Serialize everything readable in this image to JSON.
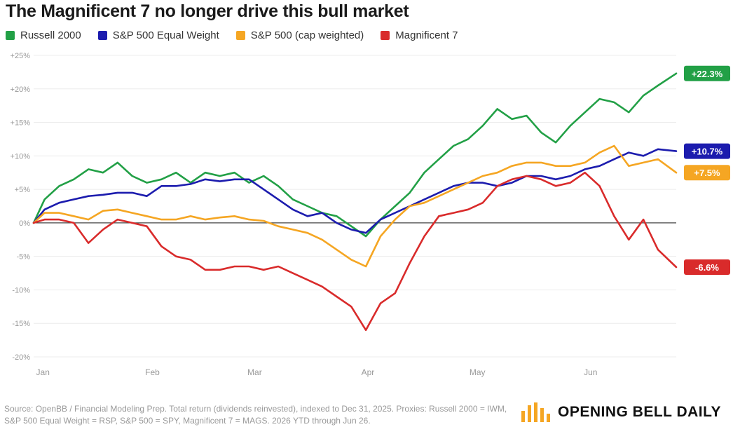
{
  "title": "The Magnificent 7 no longer drive this bull market",
  "legend": [
    {
      "label": "Russell 2000",
      "color": "#22a046"
    },
    {
      "label": "S&P 500 Equal Weight",
      "color": "#1c1cae"
    },
    {
      "label": "S&P 500 (cap weighted)",
      "color": "#f5a623"
    },
    {
      "label": "Magnificent 7",
      "color": "#d92b2b"
    }
  ],
  "source": "Source: OpenBB / Financial Modeling Prep. Total return (dividends reinvested), indexed to Dec 31, 2025. Proxies: Russell 2000 = IWM, S&P 500 Equal Weight = RSP, S&P 500 = SPY, Magnificent 7 = MAGS. 2026 YTD through Jun 26.",
  "brand": {
    "name": "OPENING BELL DAILY",
    "icon": "bar-chart-logo-icon"
  },
  "chart_data": {
    "type": "line",
    "ylim": [
      -20,
      25
    ],
    "yticks": [
      25,
      20,
      15,
      10,
      5,
      0,
      -5,
      -10,
      -15,
      -20
    ],
    "ytick_labels": [
      "+25%",
      "+20%",
      "+15%",
      "+10%",
      "+5%",
      "0%",
      "-5%",
      "-10%",
      "-15%",
      "-20%"
    ],
    "xticks": [
      {
        "label": "Jan",
        "x": "2026-01-02"
      },
      {
        "label": "Feb",
        "x": "2026-02-01"
      },
      {
        "label": "Mar",
        "x": "2026-03-01"
      },
      {
        "label": "Apr",
        "x": "2026-04-01"
      },
      {
        "label": "May",
        "x": "2026-05-01"
      },
      {
        "label": "Jun",
        "x": "2026-06-01"
      }
    ],
    "x": [
      "2026-01-01",
      "2026-01-04",
      "2026-01-08",
      "2026-01-12",
      "2026-01-16",
      "2026-01-20",
      "2026-01-24",
      "2026-01-28",
      "2026-02-01",
      "2026-02-05",
      "2026-02-09",
      "2026-02-13",
      "2026-02-17",
      "2026-02-21",
      "2026-02-25",
      "2026-03-01",
      "2026-03-05",
      "2026-03-09",
      "2026-03-13",
      "2026-03-17",
      "2026-03-21",
      "2026-03-25",
      "2026-03-29",
      "2026-04-02",
      "2026-04-06",
      "2026-04-10",
      "2026-04-14",
      "2026-04-18",
      "2026-04-22",
      "2026-04-26",
      "2026-04-30",
      "2026-05-04",
      "2026-05-08",
      "2026-05-12",
      "2026-05-16",
      "2026-05-20",
      "2026-05-24",
      "2026-05-28",
      "2026-06-01",
      "2026-06-05",
      "2026-06-09",
      "2026-06-13",
      "2026-06-17",
      "2026-06-21",
      "2026-06-26"
    ],
    "series": [
      {
        "name": "Russell 2000",
        "color": "#22a046",
        "end_label": "+22.3%",
        "values": [
          0,
          3.5,
          5.5,
          6.5,
          8,
          7.5,
          9,
          7,
          6,
          6.5,
          7.5,
          6,
          7.5,
          7,
          7.5,
          6,
          7,
          5.5,
          3.5,
          2.5,
          1.5,
          1,
          -0.5,
          -2,
          0.5,
          2.5,
          4.5,
          7.5,
          9.5,
          11.5,
          12.5,
          14.5,
          17,
          15.5,
          16,
          13.5,
          12,
          14.5,
          16.5,
          18.5,
          18,
          16.5,
          19,
          20.5,
          22.3
        ]
      },
      {
        "name": "S&P 500 Equal Weight",
        "color": "#1c1cae",
        "end_label": "+10.7%",
        "values": [
          0,
          2,
          3,
          3.5,
          4,
          4.2,
          4.5,
          4.5,
          4,
          5.5,
          5.5,
          5.8,
          6.5,
          6.2,
          6.5,
          6.5,
          5,
          3.5,
          2,
          1,
          1.5,
          0,
          -1,
          -1.5,
          0.5,
          1.5,
          2.5,
          3.5,
          4.5,
          5.5,
          6,
          6,
          5.5,
          6,
          7,
          7,
          6.5,
          7,
          8,
          8.5,
          9.5,
          10.5,
          10,
          11,
          10.7
        ]
      },
      {
        "name": "S&P 500 (cap weighted)",
        "color": "#f5a623",
        "end_label": "+7.5%",
        "values": [
          0,
          1.5,
          1.5,
          1,
          0.5,
          1.8,
          2,
          1.5,
          1,
          0.5,
          0.5,
          1,
          0.5,
          0.8,
          1,
          0.5,
          0.3,
          -0.5,
          -1,
          -1.5,
          -2.5,
          -4,
          -5.5,
          -6.5,
          -2,
          0.5,
          2.5,
          3,
          4,
          5,
          6,
          7,
          7.5,
          8.5,
          9,
          9,
          8.5,
          8.5,
          9,
          10.5,
          11.5,
          8.5,
          9,
          9.5,
          7.5
        ]
      },
      {
        "name": "Magnificent 7",
        "color": "#d92b2b",
        "end_label": "-6.6%",
        "values": [
          0,
          0.5,
          0.5,
          0,
          -3,
          -1,
          0.5,
          0,
          -0.5,
          -3.5,
          -5,
          -5.5,
          -7,
          -7,
          -6.5,
          -6.5,
          -7,
          -6.5,
          -7.5,
          -8.5,
          -9.5,
          -11,
          -12.5,
          -16,
          -12,
          -10.5,
          -6,
          -2,
          1,
          1.5,
          2,
          3,
          5.5,
          6.5,
          7,
          6.5,
          5.5,
          6,
          7.5,
          5.5,
          1,
          -2.5,
          0.5,
          -4,
          -6.6
        ]
      }
    ]
  }
}
